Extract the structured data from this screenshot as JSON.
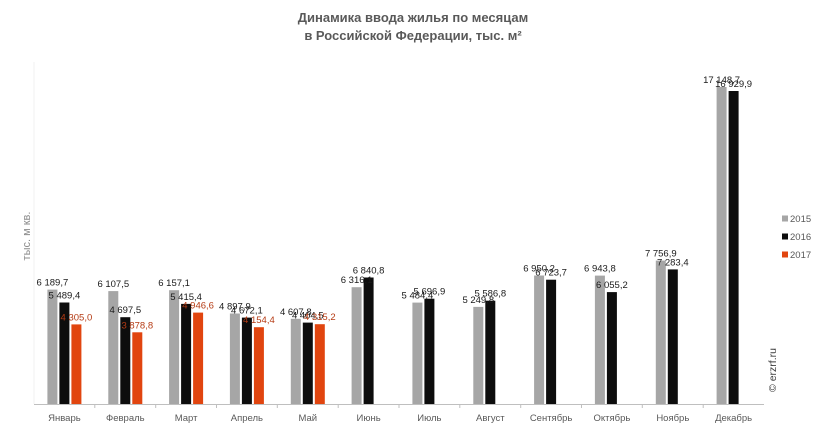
{
  "chart_data": {
    "type": "bar",
    "title": "Динамика ввода жилья по месяцам",
    "subtitle": "в Российской Федерации, тыс. м²",
    "xlabel": "",
    "ylabel": "тыс. м кв.",
    "ylim": [
      0,
      18500
    ],
    "categories": [
      "Январь",
      "Февраль",
      "Март",
      "Апрель",
      "Май",
      "Июнь",
      "Июль",
      "Август",
      "Сентябрь",
      "Октябрь",
      "Ноябрь",
      "Декабрь"
    ],
    "series": [
      {
        "name": "2015",
        "color": "#a6a6a6",
        "values": [
          6189.7,
          6107.5,
          6157.1,
          4897.9,
          4607.8,
          6316.1,
          5484.4,
          5249.8,
          6950.2,
          6943.8,
          7756.9,
          17148.7
        ],
        "labels": [
          "6 189,7",
          "6 107,5",
          "6 157,1",
          "4 897,9",
          "4 607,8",
          "6 316,1",
          "5 484,4",
          "5 249,8",
          "6 950,2",
          "6 943,8",
          "7 756,9",
          "17 148,7"
        ]
      },
      {
        "name": "2016",
        "color": "#0d0d0d",
        "values": [
          5489.4,
          4697.5,
          5415.4,
          4672.1,
          4404.5,
          6840.8,
          5696.9,
          5586.8,
          6723.7,
          6055.2,
          7283.4,
          16929.9
        ],
        "labels": [
          "5 489,4",
          "4 697,5",
          "5 415,4",
          "4 672,1",
          "4 404,5",
          "6 840,8",
          "5 696,9",
          "5 586,8",
          "6 723,7",
          "6 055,2",
          "7 283,4",
          "16 929,9"
        ]
      },
      {
        "name": "2017",
        "color": "#e1450f",
        "values": [
          4305.0,
          3878.8,
          4946.6,
          4154.4,
          4315.2,
          null,
          null,
          null,
          null,
          null,
          null,
          null
        ],
        "labels": [
          "4 305,0",
          "3 878,8",
          "4 946,6",
          "4 154,4",
          "4 315,2",
          null,
          null,
          null,
          null,
          null,
          null,
          null
        ]
      }
    ],
    "grid": false,
    "legend": "right"
  },
  "watermark": "© erzrf.ru"
}
